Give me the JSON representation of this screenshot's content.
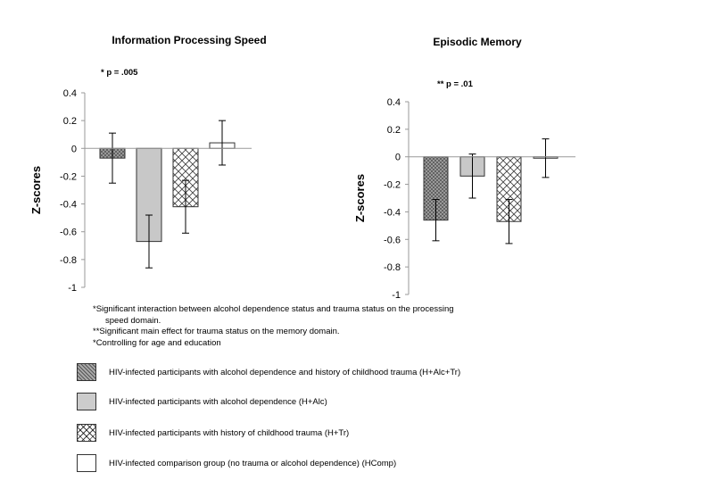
{
  "chart_data": [
    {
      "type": "bar",
      "title": "Information Processing Speed",
      "annotation": "* p = .005",
      "ylabel": "Z-scores",
      "ylim": [
        -1,
        0.4
      ],
      "yticks": [
        "0.4",
        "0.2",
        "0",
        "-0.2",
        "-0.4",
        "-0.6",
        "-0.8",
        "-1"
      ],
      "grid": false,
      "series": [
        {
          "name": "HIV-infected participants with alcohol dependence and history of childhood trauma (H+Alc+Tr)",
          "pattern": "crosshatch-dense",
          "value": -0.07,
          "error": 0.18
        },
        {
          "name": "HIV-infected participants with alcohol dependence (H+Alc)",
          "pattern": "gray",
          "value": -0.67,
          "error": 0.19
        },
        {
          "name": "HIV-infected participants with history of childhood trauma (H+Tr)",
          "pattern": "diamond",
          "value": -0.42,
          "error": 0.19
        },
        {
          "name": "HIV-infected comparison group (no trauma or alcohol dependence) (HComp)",
          "pattern": "white",
          "value": 0.04,
          "error": 0.16
        }
      ]
    },
    {
      "type": "bar",
      "title": "Episodic Memory",
      "annotation": "** p = .01",
      "ylabel": "Z-scores",
      "ylim": [
        -1,
        0.4
      ],
      "yticks": [
        "0.4",
        "0.2",
        "0",
        "-0.2",
        "-0.4",
        "-0.6",
        "-0.8",
        "-1"
      ],
      "grid": false,
      "series": [
        {
          "name": "HIV-infected participants with alcohol dependence and history of childhood trauma (H+Alc+Tr)",
          "pattern": "crosshatch-dense",
          "value": -0.46,
          "error": 0.15
        },
        {
          "name": "HIV-infected participants with alcohol dependence (H+Alc)",
          "pattern": "gray",
          "value": -0.14,
          "error": 0.16
        },
        {
          "name": "HIV-infected participants with history of childhood trauma (H+Tr)",
          "pattern": "diamond",
          "value": -0.47,
          "error": 0.16
        },
        {
          "name": "HIV-infected comparison group (no trauma or alcohol dependence) (HComp)",
          "pattern": "white",
          "value": -0.01,
          "error": 0.14
        }
      ]
    }
  ],
  "notes": {
    "note1_line1": "*Significant interaction between alcohol dependence status and trauma status on the processing",
    "note1_line2": "speed domain.",
    "note2": "**Significant main effect for trauma status on the memory domain.",
    "note3": "*Controlling for age and education"
  },
  "legend": [
    {
      "label": "HIV-infected participants with alcohol dependence and history of childhood trauma (H+Alc+Tr)",
      "pattern": "crosshatch-dense"
    },
    {
      "label": "HIV-infected participants with alcohol dependence (H+Alc)",
      "pattern": "gray"
    },
    {
      "label": "HIV-infected participants with history of childhood trauma (H+Tr)",
      "pattern": "diamond"
    },
    {
      "label": "HIV-infected comparison group (no trauma or alcohol dependence) (HComp)",
      "pattern": "white"
    }
  ],
  "colors": {
    "bar_outline": "#333333",
    "gray_fill": "#c8c8c8",
    "crosshatch_bg": "#b0b0b0",
    "axis": "#999999"
  }
}
